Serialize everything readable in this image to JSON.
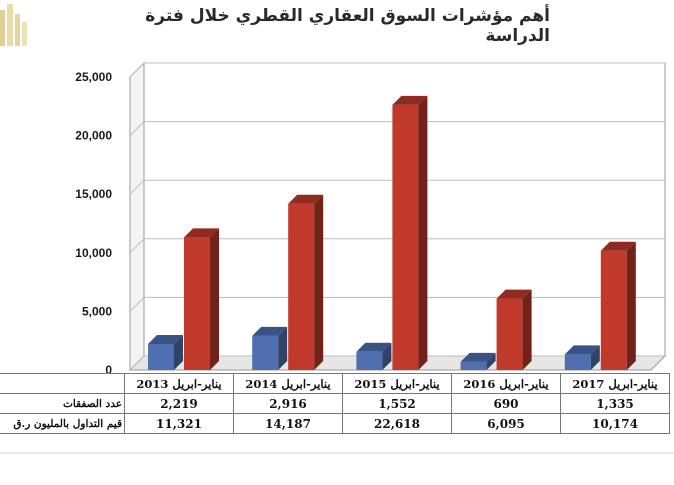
{
  "title": "أهم مؤشرات السوق العقاري القطري خلال فترة الدراسة",
  "colors": {
    "deals": "#4f6fb0",
    "value": "#c0392b",
    "grid": "#bdbdbd"
  },
  "logo_icon": "gold-building-logo",
  "table": {
    "row_labels": [
      "عدد الصفقات",
      "قيم التداول بالمليون ر.ق"
    ]
  },
  "chart_data": {
    "type": "bar",
    "categories": [
      "يناير-ابريل 2013",
      "يناير-ابريل 2014",
      "يناير-ابريل 2015",
      "يناير-ابريل 2016",
      "يناير-ابريل 2017"
    ],
    "series": [
      {
        "name": "عدد الصفقات",
        "values": [
          2219,
          2916,
          1552,
          690,
          1335
        ],
        "labels": [
          "2,219",
          "2,916",
          "1,552",
          "690",
          "1,335"
        ]
      },
      {
        "name": "قيم التداول بالمليون ر.ق",
        "values": [
          11321,
          14187,
          22618,
          6095,
          10174
        ],
        "labels": [
          "11,321",
          "14,187",
          "22,618",
          "6,095",
          "10,174"
        ]
      }
    ],
    "yticks": [
      "0",
      "5,000",
      "10,000",
      "15,000",
      "20,000",
      "25,000"
    ],
    "ylim": [
      0,
      25000
    ],
    "grid": true,
    "legend": "data-table-below"
  }
}
